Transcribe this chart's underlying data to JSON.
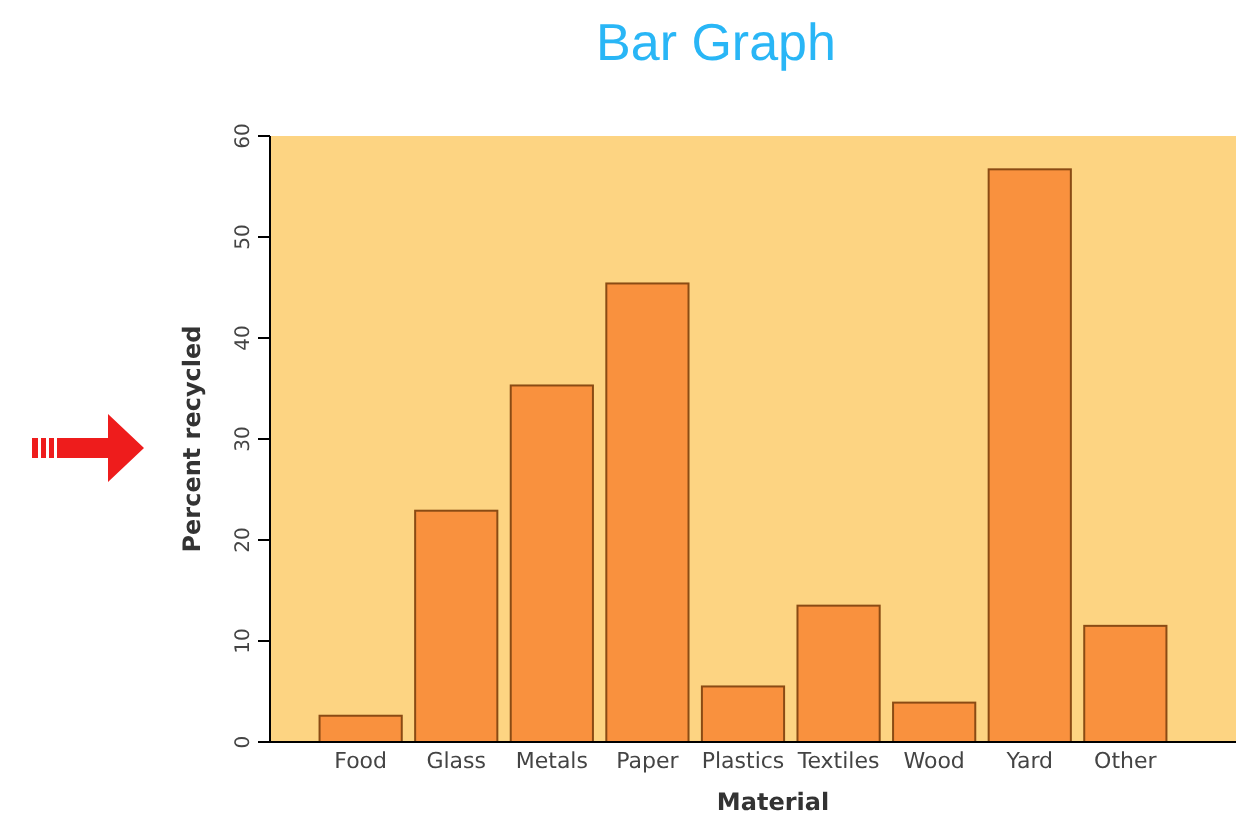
{
  "chart_data": {
    "type": "bar",
    "title": "Bar Graph",
    "xlabel": "Material",
    "ylabel": "Percent recycled",
    "categories": [
      "Food",
      "Glass",
      "Metals",
      "Paper",
      "Plastics",
      "Textiles",
      "Wood",
      "Yard",
      "Other"
    ],
    "values": [
      2.6,
      22.9,
      35.3,
      45.4,
      5.5,
      13.5,
      3.9,
      56.7,
      11.5
    ],
    "color": "#f9913e",
    "ylim": [
      0,
      60
    ],
    "yticks": [
      0,
      10,
      20,
      30,
      40,
      50,
      60
    ],
    "grid": false
  }
}
